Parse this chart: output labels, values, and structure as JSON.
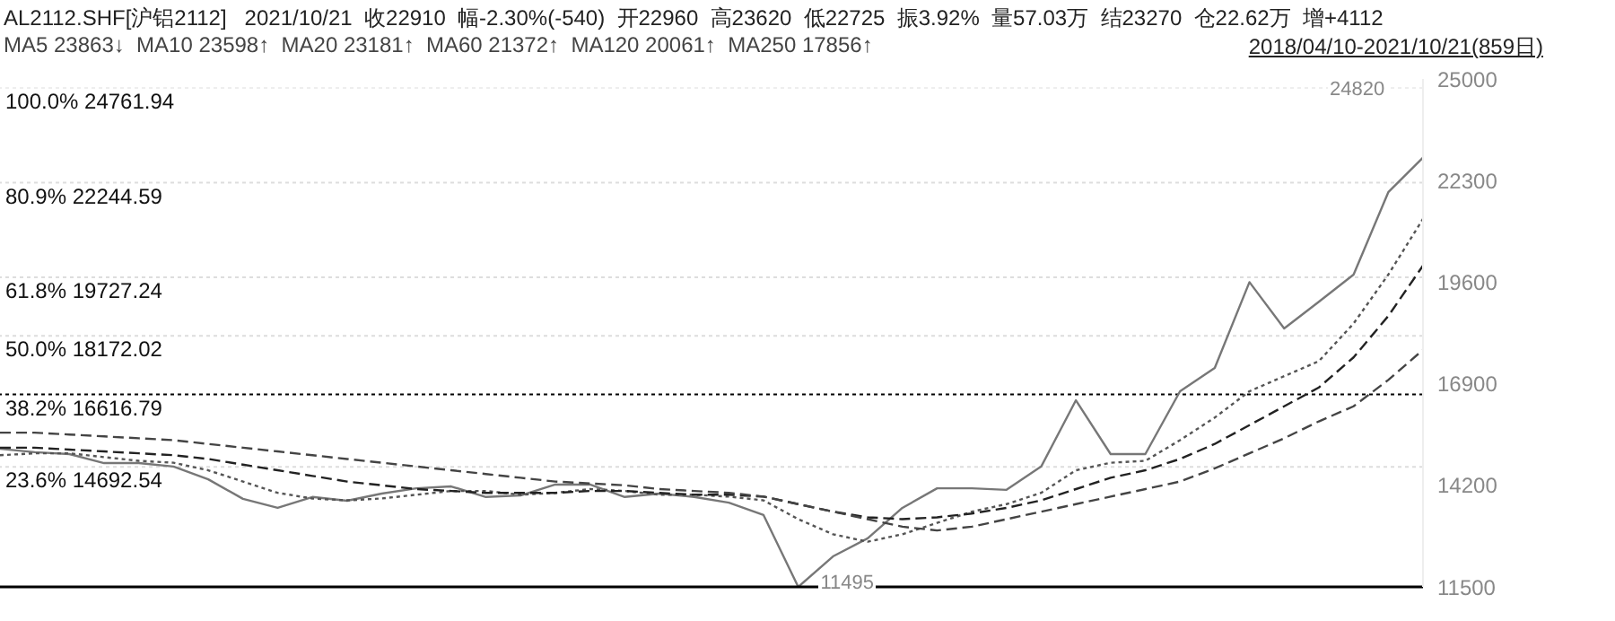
{
  "chart_data": {
    "type": "line",
    "title": "AL2112.SHF[沪铝2112]   2021/10/21  收22910  幅-2.30%(-540)  开22960  高23620  低22725  振3.92%  量57.03万  结23270  仓22.62万  增+4112",
    "subtitle": "MA5 23863↓  MA10 23598↑  MA20 23181↑  MA60 21372↑  MA120 20061↑  MA250 17856↑",
    "annotations": [
      "2018/04/10-2021/10/21(859日)",
      {
        "text": "24820",
        "y": 24820
      },
      {
        "text": "11495",
        "y": 11500
      }
    ],
    "categories": [
      null,
      null,
      null,
      null,
      null,
      null,
      null,
      null,
      null,
      null,
      null,
      null,
      null,
      null,
      null,
      null,
      null,
      null,
      null,
      null,
      null,
      null,
      null,
      null,
      null,
      null,
      null,
      null,
      null,
      null,
      null,
      null,
      null,
      null,
      null,
      null,
      null,
      null,
      null,
      null,
      null,
      null
    ],
    "series": [
      {
        "color": "#777777",
        "values": [
          15170,
          15080,
          15030,
          14790,
          14790,
          14700,
          14360,
          13840,
          13600,
          13890,
          13790,
          13980,
          14120,
          14170,
          13890,
          13930,
          14220,
          14220,
          13890,
          13980,
          13890,
          13740,
          13410,
          11500,
          12310,
          12790,
          13600,
          14120,
          14120,
          14080,
          14700,
          16460,
          15030,
          15030,
          16700,
          17320,
          19600,
          18370,
          19080,
          19800,
          21990,
          22910
        ]
      },
      {
        "color": "#555555",
        "line_style": "dotted",
        "values": [
          15000,
          15050,
          15050,
          14950,
          14850,
          14800,
          14600,
          14300,
          14000,
          13850,
          13800,
          13850,
          13950,
          14050,
          14050,
          13950,
          14000,
          14100,
          14050,
          13950,
          13950,
          13900,
          13800,
          13300,
          12900,
          12700,
          12900,
          13200,
          13500,
          13700,
          14000,
          14600,
          14800,
          14850,
          15400,
          16000,
          16700,
          17100,
          17500,
          18500,
          19800,
          21280
        ]
      },
      {
        "color": "#222222",
        "line_style": "dashed",
        "values": [
          15200,
          15200,
          15150,
          15100,
          15050,
          15000,
          14900,
          14750,
          14600,
          14450,
          14300,
          14200,
          14100,
          14050,
          14000,
          14000,
          14000,
          14050,
          14050,
          14000,
          13950,
          13950,
          13900,
          13700,
          13500,
          13350,
          13300,
          13350,
          13450,
          13600,
          13800,
          14100,
          14400,
          14600,
          14900,
          15300,
          15800,
          16300,
          16800,
          17600,
          18700,
          20040
        ]
      },
      {
        "color": "#444444",
        "line_style": "dashed",
        "values": [
          15600,
          15600,
          15550,
          15500,
          15450,
          15400,
          15300,
          15200,
          15100,
          15000,
          14900,
          14800,
          14700,
          14600,
          14500,
          14400,
          14300,
          14250,
          14200,
          14100,
          14050,
          14000,
          13900,
          13700,
          13500,
          13300,
          13100,
          13000,
          13100,
          13300,
          13500,
          13700,
          13900,
          14100,
          14300,
          14650,
          15050,
          15450,
          15900,
          16300,
          17000,
          17800
        ]
      }
    ],
    "ylim": [
      11500,
      25000
    ],
    "yticks": [
      11500,
      14200,
      16900,
      19600,
      22300,
      25000
    ],
    "tick_labels": "y",
    "marker": "none",
    "ref_lines": [
      {
        "axis": "y",
        "value": 24761.94,
        "label": "100.0%  24761.94",
        "color": "#eeeeee",
        "line_style": "dotted"
      },
      {
        "axis": "y",
        "value": 22244.59,
        "label": "80.9%  22244.59",
        "color": "#dddddd",
        "line_style": "dotted"
      },
      {
        "axis": "y",
        "value": 19727.24,
        "label": "61.8%  19727.24",
        "color": "#dddddd",
        "line_style": "dotted"
      },
      {
        "axis": "y",
        "value": 18172.02,
        "label": "50.0%  18172.02",
        "color": "#dddddd",
        "line_style": "dotted"
      },
      {
        "axis": "y",
        "value": 16616.79,
        "label": "38.2%  16616.79",
        "color": "#000000",
        "line_style": "dotted"
      },
      {
        "axis": "y",
        "value": 14692.54,
        "label": "23.6%  14692.54",
        "color": "#dddddd",
        "line_style": "dotted"
      }
    ]
  }
}
